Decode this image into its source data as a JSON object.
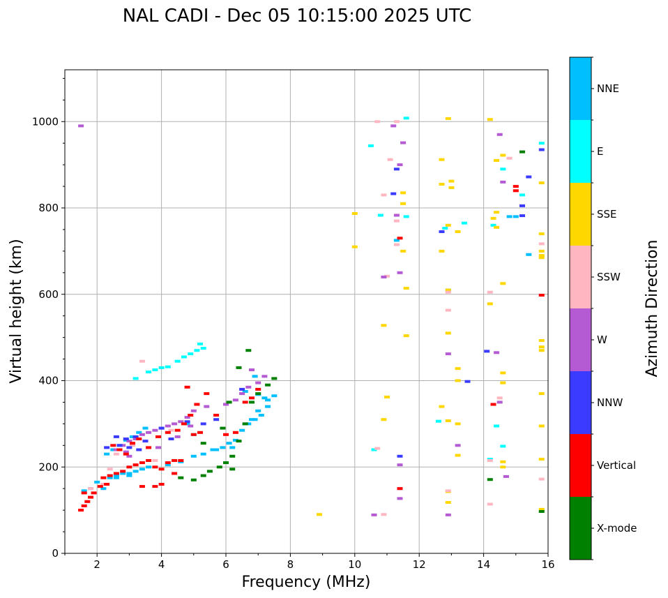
{
  "chart_data": {
    "type": "scatter",
    "title": "NAL CADI - Dec 05 10:15:00 2025 UTC",
    "xlabel": "Frequency (MHz)",
    "ylabel": "Virtual height (km)",
    "xlim": [
      1,
      16
    ],
    "ylim": [
      0,
      1120
    ],
    "xticks": [
      2,
      4,
      6,
      8,
      10,
      12,
      14,
      16
    ],
    "yticks": [
      0,
      200,
      400,
      600,
      800,
      1000
    ],
    "grid": true,
    "colorbar": {
      "label": "Azimuth Direction",
      "categories": [
        {
          "name": "X-mode",
          "color": "#008000"
        },
        {
          "name": "Vertical",
          "color": "#ff0000"
        },
        {
          "name": "NNW",
          "color": "#3b3bff"
        },
        {
          "name": "W",
          "color": "#b45ad2"
        },
        {
          "name": "SSW",
          "color": "#ffb6c1"
        },
        {
          "name": "SSE",
          "color": "#ffd700"
        },
        {
          "name": "E",
          "color": "#00ffff"
        },
        {
          "name": "NNE",
          "color": "#00bfff"
        }
      ]
    },
    "series": [
      {
        "name": "E",
        "points": [
          [
            3.2,
            405
          ],
          [
            3.6,
            420
          ],
          [
            3.8,
            425
          ],
          [
            4.0,
            430
          ],
          [
            4.2,
            432
          ],
          [
            4.5,
            445
          ],
          [
            4.7,
            455
          ],
          [
            4.9,
            462
          ],
          [
            5.1,
            470
          ],
          [
            5.3,
            475
          ],
          [
            5.2,
            485
          ],
          [
            11.6,
            1008
          ],
          [
            11.6,
            780
          ],
          [
            10.8,
            783
          ],
          [
            10.5,
            944
          ],
          [
            13.4,
            765
          ],
          [
            12.8,
            753
          ],
          [
            14.6,
            890
          ],
          [
            15.2,
            830
          ],
          [
            14.4,
            295
          ],
          [
            14.6,
            248
          ],
          [
            10.6,
            240
          ],
          [
            12.6,
            306
          ],
          [
            14.2,
            218
          ],
          [
            15.8,
            950
          ],
          [
            14.3,
            760
          ]
        ]
      },
      {
        "name": "NNE",
        "points": [
          [
            2.2,
            150
          ],
          [
            2.4,
            175
          ],
          [
            2.6,
            180
          ],
          [
            2.8,
            185
          ],
          [
            3.0,
            185
          ],
          [
            3.2,
            190
          ],
          [
            3.4,
            195
          ],
          [
            3.6,
            200
          ],
          [
            3.0,
            180
          ],
          [
            2.6,
            175
          ],
          [
            4.2,
            205
          ],
          [
            4.6,
            212
          ],
          [
            5.0,
            225
          ],
          [
            5.3,
            230
          ],
          [
            5.6,
            240
          ],
          [
            5.9,
            245
          ],
          [
            6.1,
            255
          ],
          [
            6.3,
            262
          ],
          [
            6.5,
            285
          ],
          [
            6.7,
            300
          ],
          [
            6.9,
            310
          ],
          [
            7.1,
            320
          ],
          [
            7.3,
            340
          ],
          [
            7.5,
            365
          ],
          [
            7.3,
            355
          ],
          [
            7.0,
            330
          ],
          [
            6.8,
            310
          ],
          [
            6.6,
            300
          ],
          [
            2.3,
            230
          ],
          [
            2.5,
            240
          ],
          [
            2.7,
            250
          ],
          [
            2.9,
            262
          ],
          [
            3.1,
            270
          ],
          [
            3.3,
            280
          ],
          [
            3.5,
            290
          ],
          [
            4.8,
            300
          ],
          [
            5.0,
            275
          ],
          [
            6.2,
            245
          ],
          [
            5.7,
            240
          ],
          [
            6.9,
            410
          ],
          [
            6.6,
            375
          ],
          [
            7.0,
            368
          ],
          [
            7.2,
            360
          ],
          [
            1.6,
            145
          ],
          [
            1.8,
            150
          ],
          [
            2.0,
            165
          ],
          [
            12.9,
            610
          ],
          [
            15.4,
            692
          ],
          [
            11.3,
            725
          ],
          [
            14.8,
            780
          ],
          [
            13.2,
            400
          ],
          [
            15.0,
            780
          ]
        ]
      },
      {
        "name": "SSE",
        "points": [
          [
            12.9,
            1007
          ],
          [
            14.2,
            1005
          ],
          [
            12.7,
            912
          ],
          [
            14.6,
            922
          ],
          [
            15.8,
            858
          ],
          [
            12.7,
            855
          ],
          [
            13.0,
            847
          ],
          [
            13.0,
            862
          ],
          [
            14.4,
            790
          ],
          [
            14.3,
            776
          ],
          [
            14.4,
            755
          ],
          [
            12.9,
            760
          ],
          [
            13.2,
            745
          ],
          [
            15.8,
            740
          ],
          [
            15.8,
            700
          ],
          [
            15.8,
            690
          ],
          [
            15.8,
            685
          ],
          [
            12.7,
            700
          ],
          [
            14.6,
            625
          ],
          [
            12.9,
            610
          ],
          [
            14.2,
            578
          ],
          [
            12.9,
            510
          ],
          [
            15.8,
            493
          ],
          [
            15.8,
            478
          ],
          [
            15.8,
            470
          ],
          [
            14.6,
            418
          ],
          [
            14.6,
            395
          ],
          [
            13.2,
            428
          ],
          [
            13.2,
            400
          ],
          [
            15.8,
            370
          ],
          [
            12.7,
            340
          ],
          [
            15.8,
            295
          ],
          [
            13.2,
            300
          ],
          [
            12.9,
            307
          ],
          [
            15.8,
            218
          ],
          [
            14.6,
            212
          ],
          [
            14.6,
            200
          ],
          [
            12.9,
            143
          ],
          [
            12.9,
            118
          ],
          [
            15.8,
            102
          ],
          [
            8.9,
            90
          ],
          [
            11.0,
            362
          ],
          [
            10.9,
            310
          ],
          [
            11.6,
            504
          ],
          [
            11.6,
            614
          ],
          [
            11.5,
            700
          ],
          [
            11.5,
            835
          ],
          [
            11.5,
            810
          ],
          [
            14.4,
            910
          ],
          [
            10.0,
            787
          ],
          [
            10.0,
            710
          ],
          [
            10.9,
            528
          ],
          [
            13.2,
            227
          ]
        ]
      },
      {
        "name": "SSW",
        "points": [
          [
            3.4,
            445
          ],
          [
            3.1,
            250
          ],
          [
            2.6,
            230
          ],
          [
            2.2,
            160
          ],
          [
            2.4,
            195
          ],
          [
            3.8,
            215
          ],
          [
            4.3,
            285
          ],
          [
            1.8,
            150
          ],
          [
            12.9,
            605
          ],
          [
            12.9,
            563
          ],
          [
            12.9,
            145
          ],
          [
            11.3,
            715
          ],
          [
            11.3,
            1000
          ],
          [
            10.7,
            1000
          ],
          [
            11.1,
            912
          ],
          [
            10.9,
            830
          ],
          [
            11.3,
            770
          ],
          [
            10.7,
            243
          ],
          [
            10.9,
            90
          ],
          [
            15.8,
            717
          ],
          [
            15.8,
            172
          ],
          [
            14.2,
            114
          ],
          [
            14.2,
            215
          ],
          [
            14.5,
            360
          ],
          [
            14.2,
            605
          ],
          [
            14.8,
            915
          ],
          [
            11.0,
            642
          ]
        ]
      },
      {
        "name": "W",
        "points": [
          [
            1.5,
            990
          ],
          [
            2.6,
            240
          ],
          [
            2.8,
            250
          ],
          [
            3.0,
            260
          ],
          [
            3.2,
            265
          ],
          [
            3.4,
            275
          ],
          [
            3.6,
            280
          ],
          [
            3.8,
            285
          ],
          [
            4.0,
            290
          ],
          [
            4.2,
            295
          ],
          [
            4.4,
            300
          ],
          [
            4.6,
            305
          ],
          [
            4.8,
            315
          ],
          [
            5.0,
            330
          ],
          [
            5.4,
            340
          ],
          [
            6.0,
            345
          ],
          [
            6.3,
            355
          ],
          [
            6.5,
            370
          ],
          [
            6.7,
            385
          ],
          [
            7.0,
            395
          ],
          [
            7.2,
            410
          ],
          [
            6.8,
            425
          ],
          [
            4.5,
            270
          ],
          [
            3.9,
            245
          ],
          [
            3.0,
            225
          ],
          [
            2.9,
            235
          ],
          [
            4.9,
            295
          ],
          [
            11.4,
            900
          ],
          [
            11.3,
            783
          ],
          [
            11.2,
            990
          ],
          [
            11.5,
            951
          ],
          [
            11.4,
            650
          ],
          [
            11.4,
            205
          ],
          [
            11.4,
            127
          ],
          [
            11.4,
            150
          ],
          [
            10.9,
            640
          ],
          [
            12.9,
            462
          ],
          [
            13.2,
            250
          ],
          [
            12.9,
            89
          ],
          [
            10.6,
            89
          ],
          [
            14.5,
            970
          ],
          [
            14.6,
            860
          ],
          [
            14.4,
            465
          ],
          [
            14.7,
            178
          ],
          [
            14.5,
            350
          ]
        ]
      },
      {
        "name": "NNW",
        "points": [
          [
            2.7,
            250
          ],
          [
            2.9,
            265
          ],
          [
            3.2,
            270
          ],
          [
            3.5,
            260
          ],
          [
            3.3,
            240
          ],
          [
            3.0,
            245
          ],
          [
            2.6,
            270
          ],
          [
            2.3,
            245
          ],
          [
            4.0,
            290
          ],
          [
            4.3,
            265
          ],
          [
            4.8,
            305
          ],
          [
            5.3,
            300
          ],
          [
            6.5,
            380
          ],
          [
            5.7,
            310
          ],
          [
            11.3,
            890
          ],
          [
            11.2,
            833
          ],
          [
            15.8,
            935
          ],
          [
            15.4,
            872
          ],
          [
            15.2,
            805
          ],
          [
            15.2,
            782
          ],
          [
            12.7,
            745
          ],
          [
            14.1,
            468
          ],
          [
            13.5,
            398
          ],
          [
            11.4,
            225
          ]
        ]
      },
      {
        "name": "Vertical",
        "points": [
          [
            1.5,
            100
          ],
          [
            1.6,
            110
          ],
          [
            1.7,
            120
          ],
          [
            1.8,
            130
          ],
          [
            1.6,
            140
          ],
          [
            1.9,
            140
          ],
          [
            2.1,
            155
          ],
          [
            2.3,
            160
          ],
          [
            2.2,
            175
          ],
          [
            2.4,
            180
          ],
          [
            2.6,
            185
          ],
          [
            2.8,
            190
          ],
          [
            3.0,
            200
          ],
          [
            3.2,
            205
          ],
          [
            3.4,
            210
          ],
          [
            3.6,
            215
          ],
          [
            3.8,
            200
          ],
          [
            4.0,
            195
          ],
          [
            4.2,
            210
          ],
          [
            4.4,
            215
          ],
          [
            4.6,
            215
          ],
          [
            4.0,
            160
          ],
          [
            3.8,
            155
          ],
          [
            3.4,
            155
          ],
          [
            2.7,
            240
          ],
          [
            2.5,
            250
          ],
          [
            2.9,
            230
          ],
          [
            3.1,
            255
          ],
          [
            3.3,
            265
          ],
          [
            3.6,
            245
          ],
          [
            3.9,
            270
          ],
          [
            4.2,
            280
          ],
          [
            4.5,
            285
          ],
          [
            4.7,
            300
          ],
          [
            4.9,
            320
          ],
          [
            5.1,
            345
          ],
          [
            5.4,
            370
          ],
          [
            5.7,
            320
          ],
          [
            6.0,
            275
          ],
          [
            6.3,
            280
          ],
          [
            6.6,
            350
          ],
          [
            6.8,
            360
          ],
          [
            7.0,
            380
          ],
          [
            4.4,
            185
          ],
          [
            5.0,
            275
          ],
          [
            5.2,
            280
          ],
          [
            4.8,
            385
          ],
          [
            11.4,
            730
          ],
          [
            15.0,
            850
          ],
          [
            15.0,
            840
          ],
          [
            15.8,
            598
          ],
          [
            14.3,
            345
          ],
          [
            11.4,
            150
          ]
        ]
      },
      {
        "name": "X-mode",
        "points": [
          [
            5.0,
            170
          ],
          [
            5.3,
            180
          ],
          [
            5.5,
            190
          ],
          [
            5.8,
            200
          ],
          [
            6.0,
            210
          ],
          [
            6.2,
            225
          ],
          [
            6.4,
            260
          ],
          [
            6.6,
            300
          ],
          [
            6.8,
            350
          ],
          [
            7.0,
            370
          ],
          [
            7.3,
            390
          ],
          [
            7.5,
            405
          ],
          [
            6.4,
            430
          ],
          [
            6.1,
            350
          ],
          [
            5.9,
            290
          ],
          [
            5.3,
            255
          ],
          [
            6.2,
            195
          ],
          [
            4.6,
            175
          ],
          [
            6.7,
            470
          ],
          [
            15.2,
            930
          ],
          [
            14.2,
            171
          ],
          [
            15.8,
            97
          ]
        ]
      }
    ]
  }
}
